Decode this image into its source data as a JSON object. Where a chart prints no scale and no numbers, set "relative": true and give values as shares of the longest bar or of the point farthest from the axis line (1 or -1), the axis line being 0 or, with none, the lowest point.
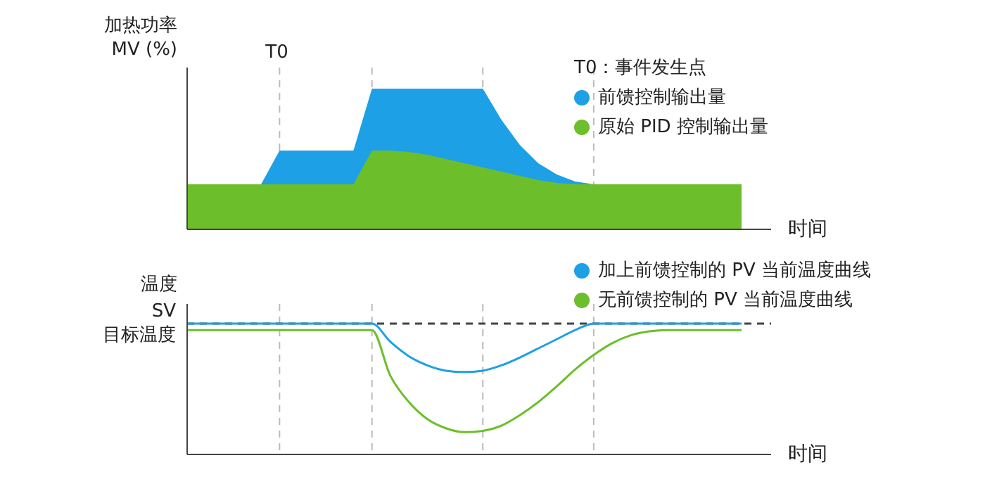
{
  "chart_data": [
    {
      "type": "area",
      "relative": true,
      "ylabel": "加热功率\nMV (%)",
      "xlabel": "时间",
      "legend": "top right",
      "categories": [
        null,
        null,
        null,
        null,
        null,
        null,
        null,
        null,
        null,
        null,
        null,
        null,
        null,
        null,
        null,
        null,
        null,
        null,
        null,
        null,
        null,
        null,
        null,
        null,
        null,
        null,
        null,
        null,
        null,
        null,
        null
      ],
      "grid": "x",
      "annotations": [
        "T0：事件发生点",
        "T0"
      ],
      "series": [
        {
          "name": "前馈控制输出量",
          "color": "#1ea0e6",
          "values": [
            0.32,
            0.32,
            0.32,
            0.32,
            0.32,
            0.56,
            0.56,
            0.56,
            0.56,
            0.56,
            1,
            1,
            1,
            1,
            1,
            1,
            1,
            0.78,
            0.6,
            0.47,
            0.39,
            0.34,
            0.32,
            0.32,
            0.32,
            0.32,
            0.32,
            0.32,
            0.32,
            0.32,
            0.32
          ]
        },
        {
          "name": "原始 PID 控制输出量",
          "color": "#6cbf2a",
          "values": [
            0.32,
            0.32,
            0.32,
            0.32,
            0.32,
            0.32,
            0.32,
            0.32,
            0.32,
            0.32,
            0.56,
            0.56,
            0.55,
            0.53,
            0.5,
            0.47,
            0.44,
            0.41,
            0.38,
            0.35,
            0.33,
            0.32,
            0.32,
            0.32,
            0.32,
            0.32,
            0.32,
            0.32,
            0.32,
            0.32,
            0.32
          ]
        }
      ]
    },
    {
      "type": "line",
      "relative": true,
      "ylabel": "温度",
      "xlabel": "时间",
      "legend": "top right",
      "marker": "none",
      "categories": [
        null,
        null,
        null,
        null,
        null,
        null,
        null,
        null,
        null,
        null,
        null,
        null,
        null,
        null,
        null,
        null,
        null,
        null,
        null,
        null,
        null,
        null,
        null,
        null,
        null,
        null,
        null,
        null,
        null,
        null,
        null
      ],
      "grid": "x",
      "ref_lines": [
        {
          "axis": "y",
          "value": 1,
          "label": "SV\n目标温度",
          "color": "#444444",
          "line_style": "dashed"
        }
      ],
      "series": [
        {
          "name": "加上前馈控制的 PV 当前温度曲线",
          "color": "#1ea0e6",
          "values": [
            1,
            1,
            1,
            1,
            1,
            1,
            1,
            1,
            1,
            1,
            1,
            0.86,
            0.75,
            0.68,
            0.64,
            0.63,
            0.64,
            0.68,
            0.74,
            0.81,
            0.88,
            0.95,
            1,
            1,
            1,
            1,
            1,
            1,
            1,
            1,
            1
          ]
        },
        {
          "name": "无前馈控制的 PV 当前温度曲线",
          "color": "#6cbf2a",
          "values": [
            0.95,
            0.95,
            0.95,
            0.95,
            0.95,
            0.95,
            0.95,
            0.95,
            0.95,
            0.95,
            0.95,
            0.6,
            0.4,
            0.27,
            0.2,
            0.17,
            0.18,
            0.22,
            0.3,
            0.4,
            0.52,
            0.65,
            0.76,
            0.85,
            0.91,
            0.94,
            0.95,
            0.95,
            0.95,
            0.95,
            0.95
          ]
        }
      ]
    }
  ]
}
